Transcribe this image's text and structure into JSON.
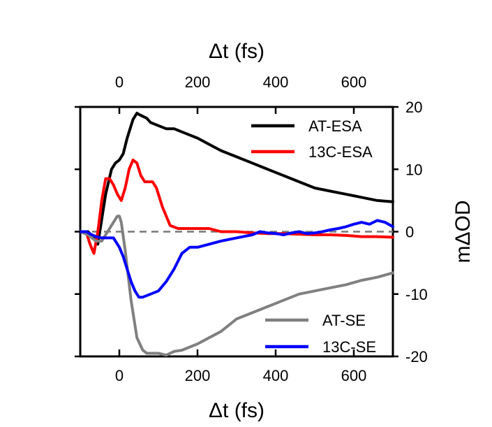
{
  "chart_data": {
    "type": "line",
    "xlabel": "Δt (fs)",
    "ylabel": "mΔOD",
    "xlim": [
      -100,
      700
    ],
    "ylim": [
      -20,
      20
    ],
    "x_ticks": [
      0,
      200,
      400,
      600
    ],
    "y_ticks": [
      -20,
      -10,
      0,
      10,
      20
    ],
    "x_axes": [
      "top",
      "bottom"
    ],
    "y_axis": "right",
    "grid": false,
    "zero_reference_line": {
      "y": 0,
      "style": "dashed",
      "color": "#777777"
    },
    "series": [
      {
        "name": "AT-ESA",
        "color": "#000000",
        "x": [
          -100,
          -80,
          -65,
          -55,
          -45,
          -35,
          -20,
          -10,
          0,
          10,
          20,
          35,
          45,
          50,
          60,
          70,
          80,
          100,
          120,
          140,
          160,
          180,
          200,
          230,
          260,
          300,
          340,
          380,
          420,
          460,
          500,
          540,
          580,
          620,
          660,
          700
        ],
        "y": [
          0,
          0,
          -1,
          -2,
          2,
          6,
          10,
          11,
          11.5,
          12.5,
          15,
          18,
          19,
          18.8,
          18.5,
          18.2,
          17.5,
          17,
          16.5,
          16.5,
          16,
          15.5,
          15,
          14,
          13,
          12,
          11,
          10,
          9,
          8,
          7,
          6.5,
          6,
          5.5,
          5,
          4.8
        ]
      },
      {
        "name": "13C-ESA",
        "color": "#ff0000",
        "x": [
          -100,
          -85,
          -75,
          -65,
          -55,
          -45,
          -35,
          -25,
          -15,
          -5,
          5,
          15,
          25,
          35,
          45,
          55,
          65,
          75,
          85,
          95,
          110,
          130,
          150,
          170,
          200,
          230,
          260,
          300,
          340,
          380,
          420,
          460,
          500,
          540,
          580,
          620,
          660,
          700
        ],
        "y": [
          0,
          0,
          -2,
          -3.5,
          0,
          5,
          8.5,
          8.5,
          7.5,
          6,
          5,
          7,
          10,
          11.5,
          11,
          9,
          8,
          8,
          8,
          7,
          4,
          1,
          0.5,
          0.5,
          0.5,
          0.5,
          0,
          0,
          -0.2,
          -0.3,
          -0.3,
          -0.4,
          -0.5,
          -0.5,
          -0.6,
          -0.8,
          -0.8,
          -0.9
        ]
      },
      {
        "name": "AT-SE",
        "color": "#808080",
        "x": [
          -100,
          -80,
          -60,
          -45,
          -30,
          -15,
          -5,
          0,
          5,
          15,
          30,
          45,
          60,
          70,
          80,
          100,
          120,
          140,
          160,
          180,
          200,
          230,
          260,
          300,
          340,
          380,
          420,
          460,
          500,
          540,
          580,
          620,
          660,
          700
        ],
        "y": [
          0,
          -0.5,
          -1.5,
          -1.5,
          0,
          1.5,
          2.5,
          2.5,
          1.5,
          -3,
          -11,
          -17,
          -19,
          -19.5,
          -19.5,
          -19.5,
          -19.8,
          -19.2,
          -19,
          -18.5,
          -18,
          -17,
          -16,
          -14,
          -13,
          -12,
          -11,
          -10,
          -9.5,
          -9,
          -8.5,
          -7.8,
          -7.3,
          -6.6
        ]
      },
      {
        "name": "13C-SE",
        "color": "#0000ff",
        "x": [
          -100,
          -85,
          -70,
          -60,
          -45,
          -30,
          -15,
          0,
          10,
          20,
          30,
          40,
          50,
          60,
          80,
          100,
          120,
          140,
          160,
          180,
          200,
          230,
          260,
          300,
          340,
          360,
          380,
          400,
          420,
          440,
          460,
          480,
          500,
          520,
          540,
          560,
          580,
          600,
          620,
          640,
          660,
          680,
          700
        ],
        "y": [
          0,
          0,
          -0.5,
          -0.8,
          -1,
          -1,
          -1,
          -2.5,
          -4,
          -6,
          -8,
          -9.5,
          -10.5,
          -10.5,
          -10,
          -9.5,
          -8,
          -6,
          -3.5,
          -2.5,
          -2.5,
          -2,
          -1.5,
          -1,
          -0.5,
          0,
          -0.2,
          -0.3,
          -0.5,
          -0.2,
          0,
          -0.3,
          -0.2,
          0,
          0.3,
          0.5,
          0.8,
          1.2,
          1.5,
          1.2,
          1.8,
          1.5,
          0.8
        ]
      }
    ]
  }
}
